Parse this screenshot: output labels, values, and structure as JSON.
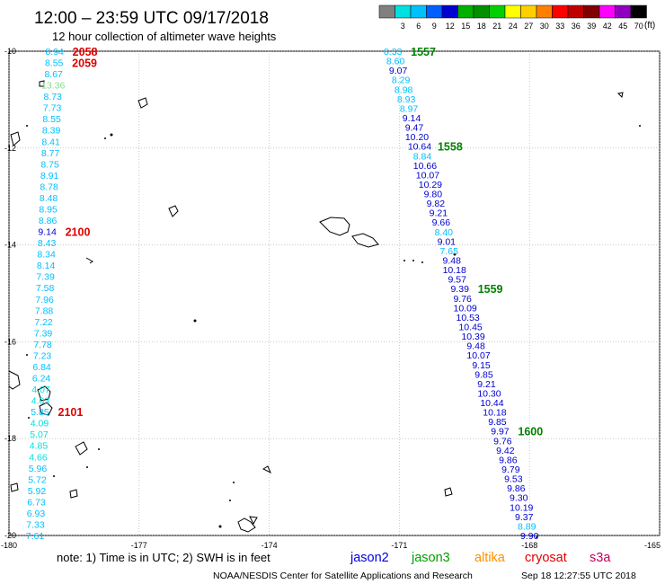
{
  "header": {
    "title": "12:00 – 23:59 UTC 09/17/2018",
    "subtitle": "12 hour collection of altimeter wave heights"
  },
  "legend": {
    "unit": "(ft)",
    "swatches": [
      {
        "label": "",
        "color": "#808080"
      },
      {
        "label": "3",
        "color": "#00e0e0"
      },
      {
        "label": "6",
        "color": "#00c0ff"
      },
      {
        "label": "9",
        "color": "#0060ff"
      },
      {
        "label": "12",
        "color": "#0000d0"
      },
      {
        "label": "15",
        "color": "#00b000"
      },
      {
        "label": "18",
        "color": "#009000"
      },
      {
        "label": "21",
        "color": "#00d000"
      },
      {
        "label": "24",
        "color": "#ffff00"
      },
      {
        "label": "27",
        "color": "#ffd000"
      },
      {
        "label": "30",
        "color": "#ff8000"
      },
      {
        "label": "33",
        "color": "#ff0000"
      },
      {
        "label": "36",
        "color": "#c00000"
      },
      {
        "label": "39",
        "color": "#800000"
      },
      {
        "label": "42",
        "color": "#ff00ff"
      },
      {
        "label": "45",
        "color": "#9000c0"
      },
      {
        "label": "70",
        "color": "#000000"
      }
    ]
  },
  "map": {
    "lon_min": -180,
    "lon_max": -165,
    "lat_min": -20,
    "lat_max": -10,
    "lon_ticks": [
      "-180",
      "-177",
      "-174",
      "-171",
      "-168",
      "-165"
    ],
    "lat_ticks": [
      "-10",
      "-12",
      "-14",
      "-16",
      "-18",
      "-20"
    ]
  },
  "tracks": [
    {
      "name": "left",
      "start_lat": -10,
      "end_lat": -20,
      "start_lon": -178.95,
      "end_lon": -179.4,
      "values": [
        "8.94",
        "8.55",
        "8.67",
        "13.36",
        "8.73",
        "7.73",
        "8.55",
        "8.39",
        "8.41",
        "8.77",
        "8.75",
        "8.91",
        "8.78",
        "8.48",
        "8.95",
        "8.86",
        "9.14",
        "8.43",
        "8.34",
        "8.14",
        "7.39",
        "7.58",
        "7.96",
        "7.88",
        "7.22",
        "7.39",
        "7.78",
        "7.23",
        "6.84",
        "6.24",
        "4.07",
        "4.03",
        "5.85",
        "4.09",
        "5.07",
        "4.85",
        "4.66",
        "5.96",
        "5.72",
        "5.92",
        "6.73",
        "6.93",
        "7.33",
        "7.61"
      ],
      "colors": [
        "#00c0ff",
        "#00c0ff",
        "#00c0ff",
        "#80e080",
        "#00c0ff",
        "#00c0ff",
        "#00c0ff",
        "#00c0ff",
        "#00c0ff",
        "#00c0ff",
        "#00c0ff",
        "#00c0ff",
        "#00c0ff",
        "#00c0ff",
        "#00c0ff",
        "#00c0ff",
        "#0000d0",
        "#00c0ff",
        "#00c0ff",
        "#00c0ff",
        "#00c0ff",
        "#00c0ff",
        "#00c0ff",
        "#00c0ff",
        "#00c0ff",
        "#00c0ff",
        "#00c0ff",
        "#00c0ff",
        "#00c0ff",
        "#00c0ff",
        "#00e0e0",
        "#00e0e0",
        "#00c0ff",
        "#00e0e0",
        "#00e0e0",
        "#00e0e0",
        "#00e0e0",
        "#00c0ff",
        "#00c0ff",
        "#00c0ff",
        "#00c0ff",
        "#00c0ff",
        "#00c0ff",
        "#00c0ff"
      ],
      "time_labels": [
        {
          "text": "2058",
          "index": 0
        },
        {
          "text": "2059",
          "index": 1
        },
        {
          "text": "2100",
          "index": 16
        },
        {
          "text": "2101",
          "index": 32
        }
      ],
      "time_color": "#e00000"
    },
    {
      "name": "right",
      "start_lat": -10,
      "end_lat": -20,
      "start_lon": -171.15,
      "end_lon": -168.0,
      "values": [
        "8.33",
        "8.60",
        "9.07",
        "8.29",
        "8.98",
        "8.93",
        "8.97",
        "9.14",
        "9.47",
        "10.20",
        "10.64",
        "8.84",
        "10.66",
        "10.07",
        "10.29",
        "9.80",
        "9.82",
        "9.21",
        "9.66",
        "8.40",
        "9.01",
        "7.65",
        "9.48",
        "10.18",
        "9.57",
        "9.39",
        "9.76",
        "10.09",
        "10.53",
        "10.45",
        "10.39",
        "9.48",
        "10.07",
        "9.15",
        "9.85",
        "9.21",
        "10.30",
        "10.44",
        "10.18",
        "9.85",
        "9.97",
        "9.76",
        "9.42",
        "9.86",
        "9.79",
        "9.53",
        "9.86",
        "9.30",
        "10.19",
        "9.37",
        "8.89",
        "9.90"
      ],
      "colors": [
        "#00c0ff",
        "#00c0ff",
        "#0000d0",
        "#00c0ff",
        "#00c0ff",
        "#00c0ff",
        "#00c0ff",
        "#0000d0",
        "#0000d0",
        "#0000d0",
        "#0000d0",
        "#00c0ff",
        "#0000d0",
        "#0000d0",
        "#0000d0",
        "#0000d0",
        "#0000d0",
        "#0000d0",
        "#0000d0",
        "#00c0ff",
        "#0000d0",
        "#00c0ff",
        "#0000d0",
        "#0000d0",
        "#0000d0",
        "#0000d0",
        "#0000d0",
        "#0000d0",
        "#0000d0",
        "#0000d0",
        "#0000d0",
        "#0000d0",
        "#0000d0",
        "#0000d0",
        "#0000d0",
        "#0000d0",
        "#0000d0",
        "#0000d0",
        "#0000d0",
        "#0000d0",
        "#0000d0",
        "#0000d0",
        "#0000d0",
        "#0000d0",
        "#0000d0",
        "#0000d0",
        "#0000d0",
        "#0000d0",
        "#0000d0",
        "#0000d0",
        "#00c0ff",
        "#0000d0"
      ],
      "time_labels": [
        {
          "text": "1557",
          "index": 0
        },
        {
          "text": "1558",
          "index": 10
        },
        {
          "text": "1559",
          "index": 25
        },
        {
          "text": "1600",
          "index": 40
        }
      ],
      "time_color": "#008000"
    }
  ],
  "footer": {
    "note": "note:  1) Time is in UTC;  2) SWH is in feet",
    "satellites": [
      {
        "name": "jason2",
        "color": "#0000e0"
      },
      {
        "name": "jason3",
        "color": "#00a000"
      },
      {
        "name": "altika",
        "color": "#ff9000"
      },
      {
        "name": "cryosat",
        "color": "#e00000"
      },
      {
        "name": "s3a",
        "color": "#c00060"
      }
    ],
    "credit": "NOAA/NESDIS Center for Satellite Applications and Research",
    "timestamp": "Sep 18 12:27:55 UTC 2018"
  }
}
